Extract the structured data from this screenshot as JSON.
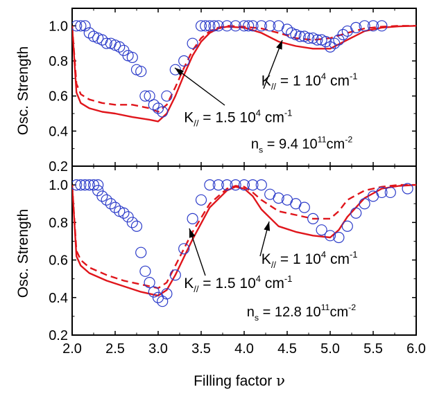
{
  "x_axis": {
    "label": "Filling factor",
    "symbol": "ν",
    "ticks": [
      "2.0",
      "2.5",
      "3.0",
      "3.5",
      "4.0",
      "4.5",
      "5.0",
      "5.5",
      "6.0"
    ]
  },
  "colors": {
    "theory": "#e0151b",
    "data": "#2b3bc9",
    "axes": "#000000"
  },
  "chart_data": [
    {
      "type": "line",
      "panel": "top",
      "ylabel": "Osc. Strength",
      "xlim": [
        2.0,
        6.0
      ],
      "ylim": [
        0.2,
        1.1
      ],
      "y_ticks": [
        "0.2",
        "0.4",
        "0.6",
        "0.8",
        "1.0"
      ],
      "grid": false,
      "annotations": {
        "k_high": {
          "pre": "K",
          "sub": "//",
          "mid": " = 1.5 10",
          "sup": "4",
          "post": " cm",
          "sup2": "-1",
          "x": 3.3,
          "y": 0.45
        },
        "k_low": {
          "pre": "K",
          "sub": "//",
          "mid": " = 1 10",
          "sup": "4",
          "post": " cm",
          "sup2": "-1",
          "x": 4.2,
          "y": 0.66
        },
        "density": {
          "pre": "n",
          "sub": "s",
          "mid": " = 9.4  10",
          "sup": "11",
          "post": "cm",
          "sup2": "-2",
          "x": 4.08,
          "y": 0.3
        }
      },
      "series": [
        {
          "style": "solid",
          "x": [
            2.0,
            2.05,
            2.1,
            2.2,
            2.35,
            2.5,
            2.7,
            2.9,
            3.0,
            3.1,
            3.2,
            3.3,
            3.4,
            3.5,
            3.6,
            3.7,
            3.8,
            4.0,
            4.2,
            4.4,
            4.6,
            4.8,
            5.0,
            5.2,
            5.4,
            5.6,
            5.8,
            6.0
          ],
          "y": [
            1.0,
            0.62,
            0.56,
            0.53,
            0.51,
            0.5,
            0.48,
            0.465,
            0.455,
            0.5,
            0.6,
            0.72,
            0.83,
            0.91,
            0.96,
            0.985,
            0.995,
            0.99,
            0.96,
            0.91,
            0.885,
            0.87,
            0.87,
            0.92,
            0.97,
            0.99,
            0.997,
            1.0
          ]
        },
        {
          "style": "dashed",
          "x": [
            2.0,
            2.05,
            2.1,
            2.2,
            2.35,
            2.5,
            2.7,
            2.9,
            3.0,
            3.1,
            3.2,
            3.3,
            3.4,
            3.5,
            3.6,
            3.7,
            3.8,
            4.0,
            4.2,
            4.4,
            4.6,
            4.8,
            5.0,
            5.2,
            5.4,
            5.6,
            5.8,
            6.0
          ],
          "y": [
            1.0,
            0.67,
            0.61,
            0.58,
            0.56,
            0.55,
            0.55,
            0.53,
            0.51,
            0.55,
            0.65,
            0.76,
            0.86,
            0.93,
            0.97,
            0.99,
            1.0,
            0.995,
            0.985,
            0.96,
            0.93,
            0.92,
            0.93,
            0.96,
            0.985,
            0.995,
            1.0,
            1.0
          ]
        },
        {
          "style": "open-circles",
          "x": [
            2.05,
            2.1,
            2.15,
            2.2,
            2.25,
            2.3,
            2.35,
            2.4,
            2.45,
            2.5,
            2.55,
            2.6,
            2.65,
            2.7,
            2.75,
            2.8,
            2.85,
            2.9,
            2.95,
            3.0,
            3.05,
            3.1,
            3.2,
            3.3,
            3.4,
            3.5,
            3.55,
            3.6,
            3.65,
            3.7,
            3.8,
            3.9,
            4.0,
            4.05,
            4.1,
            4.2,
            4.3,
            4.4,
            4.5,
            4.55,
            4.6,
            4.65,
            4.7,
            4.75,
            4.8,
            4.85,
            4.9,
            4.95,
            5.0,
            5.05,
            5.1,
            5.15,
            5.2,
            5.3,
            5.4,
            5.5,
            5.6
          ],
          "y": [
            1.0,
            1.0,
            1.0,
            0.96,
            0.94,
            0.93,
            0.92,
            0.9,
            0.9,
            0.89,
            0.88,
            0.86,
            0.83,
            0.82,
            0.75,
            0.74,
            0.6,
            0.6,
            0.55,
            0.53,
            0.51,
            0.6,
            0.75,
            0.8,
            0.9,
            1.0,
            1.0,
            1.0,
            1.0,
            1.0,
            1.0,
            1.0,
            1.0,
            1.0,
            1.0,
            1.0,
            1.0,
            1.0,
            0.98,
            0.96,
            0.95,
            0.94,
            0.94,
            0.93,
            0.93,
            0.92,
            0.92,
            0.91,
            0.88,
            0.9,
            0.92,
            0.95,
            0.97,
            0.99,
            1.0,
            1.0,
            1.0
          ]
        }
      ]
    },
    {
      "type": "line",
      "panel": "bottom",
      "ylabel": "Osc. Strength",
      "xlim": [
        2.0,
        6.0
      ],
      "ylim": [
        0.2,
        1.1
      ],
      "y_ticks": [
        "0.2",
        "0.4",
        "0.6",
        "0.8",
        "1.0"
      ],
      "grid": false,
      "annotations": {
        "k_high": {
          "pre": "K",
          "sub": "//",
          "mid": " = 1.5 10",
          "sup": "4",
          "post": " cm",
          "sup2": "-1",
          "x": 3.3,
          "y": 0.45
        },
        "k_low": {
          "pre": "K",
          "sub": "//",
          "mid": " = 1 10",
          "sup": "4",
          "post": " cm",
          "sup2": "-1",
          "x": 4.2,
          "y": 0.58
        },
        "density": {
          "pre": "n",
          "sub": "s",
          "mid": " = 12.8  10",
          "sup": "11",
          "post": "cm",
          "sup2": "-2",
          "x": 4.03,
          "y": 0.3
        }
      },
      "series": [
        {
          "style": "solid",
          "x": [
            2.0,
            2.05,
            2.1,
            2.2,
            2.4,
            2.6,
            2.8,
            3.0,
            3.1,
            3.2,
            3.4,
            3.6,
            3.8,
            3.9,
            4.0,
            4.1,
            4.2,
            4.4,
            4.6,
            4.8,
            5.0,
            5.1,
            5.2,
            5.4,
            5.6,
            5.8,
            6.0
          ],
          "y": [
            1.0,
            0.62,
            0.57,
            0.53,
            0.49,
            0.46,
            0.43,
            0.41,
            0.44,
            0.52,
            0.71,
            0.88,
            0.97,
            0.99,
            0.98,
            0.94,
            0.87,
            0.78,
            0.75,
            0.73,
            0.72,
            0.76,
            0.83,
            0.93,
            0.98,
            0.995,
            1.0
          ]
        },
        {
          "style": "dashed",
          "x": [
            2.0,
            2.05,
            2.1,
            2.2,
            2.4,
            2.6,
            2.8,
            3.0,
            3.1,
            3.2,
            3.4,
            3.6,
            3.8,
            3.9,
            4.0,
            4.1,
            4.2,
            4.4,
            4.6,
            4.8,
            5.0,
            5.1,
            5.2,
            5.4,
            5.6,
            5.8,
            6.0
          ],
          "y": [
            1.0,
            0.65,
            0.6,
            0.56,
            0.52,
            0.49,
            0.47,
            0.45,
            0.48,
            0.57,
            0.75,
            0.9,
            0.98,
            0.995,
            0.99,
            0.96,
            0.92,
            0.86,
            0.84,
            0.82,
            0.82,
            0.86,
            0.92,
            0.97,
            0.99,
            1.0,
            1.0
          ]
        },
        {
          "style": "open-circles",
          "x": [
            2.05,
            2.1,
            2.15,
            2.2,
            2.25,
            2.3,
            2.3,
            2.35,
            2.4,
            2.45,
            2.5,
            2.55,
            2.6,
            2.65,
            2.7,
            2.75,
            2.8,
            2.85,
            2.9,
            2.95,
            3.0,
            3.05,
            3.1,
            3.2,
            3.3,
            3.4,
            3.5,
            3.6,
            3.7,
            3.8,
            3.9,
            4.0,
            4.1,
            4.2,
            4.3,
            4.4,
            4.5,
            4.6,
            4.7,
            4.8,
            4.9,
            5.0,
            5.1,
            5.2,
            5.3,
            5.4,
            5.5,
            5.6,
            5.7,
            5.9
          ],
          "y": [
            1.0,
            1.0,
            1.0,
            1.0,
            1.0,
            1.0,
            0.97,
            0.94,
            0.92,
            0.9,
            0.88,
            0.86,
            0.85,
            0.83,
            0.8,
            0.78,
            0.64,
            0.54,
            0.48,
            0.43,
            0.4,
            0.38,
            0.42,
            0.52,
            0.66,
            0.82,
            0.92,
            1.0,
            1.0,
            1.0,
            1.0,
            1.0,
            1.0,
            1.0,
            0.95,
            0.93,
            0.92,
            0.9,
            0.88,
            0.82,
            0.76,
            0.73,
            0.72,
            0.78,
            0.85,
            0.9,
            0.94,
            0.96,
            0.96,
            0.98
          ]
        }
      ]
    }
  ]
}
